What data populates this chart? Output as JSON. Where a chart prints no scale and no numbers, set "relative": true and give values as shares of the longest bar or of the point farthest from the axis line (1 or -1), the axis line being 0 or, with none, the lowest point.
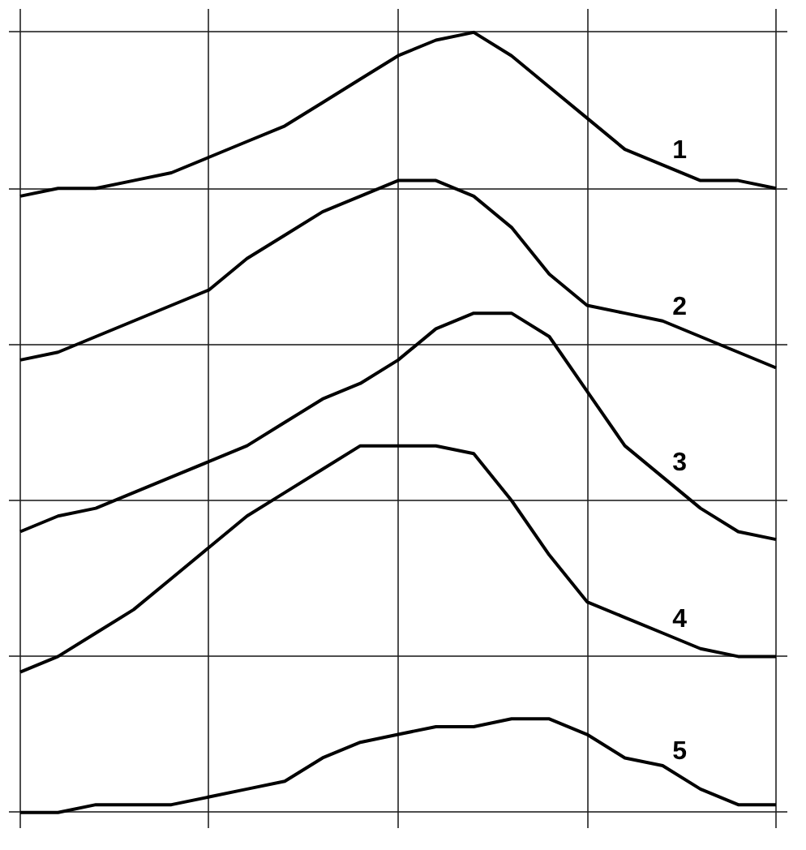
{
  "chart_data": {
    "type": "line",
    "relative": true,
    "grid": true,
    "marker": "none",
    "line_style": "solid",
    "tick_labels": false,
    "categories": [
      null,
      null,
      null,
      null,
      null,
      null,
      null,
      null,
      null,
      null,
      null,
      null,
      null,
      null,
      null,
      null,
      null,
      null,
      null,
      null,
      null
    ],
    "series": [
      {
        "name": "1",
        "color": "#000000",
        "values": [
          0.79,
          0.8,
          0.8,
          0.81,
          0.82,
          0.84,
          0.86,
          0.88,
          0.91,
          0.94,
          0.97,
          0.99,
          1.0,
          0.97,
          0.93,
          0.89,
          0.85,
          0.83,
          0.81,
          0.81,
          0.8
        ]
      },
      {
        "name": "2",
        "color": "#000000",
        "values": [
          0.58,
          0.59,
          0.61,
          0.63,
          0.65,
          0.67,
          0.71,
          0.74,
          0.77,
          0.79,
          0.81,
          0.81,
          0.79,
          0.75,
          0.69,
          0.65,
          0.64,
          0.63,
          0.61,
          0.59,
          0.57
        ]
      },
      {
        "name": "3",
        "color": "#000000",
        "values": [
          0.36,
          0.38,
          0.39,
          0.41,
          0.43,
          0.45,
          0.47,
          0.5,
          0.53,
          0.55,
          0.58,
          0.62,
          0.64,
          0.64,
          0.61,
          0.54,
          0.47,
          0.43,
          0.39,
          0.36,
          0.35
        ]
      },
      {
        "name": "4",
        "color": "#000000",
        "values": [
          0.18,
          0.2,
          0.23,
          0.26,
          0.3,
          0.34,
          0.38,
          0.41,
          0.44,
          0.47,
          0.47,
          0.47,
          0.46,
          0.4,
          0.33,
          0.27,
          0.25,
          0.23,
          0.21,
          0.2,
          0.2
        ]
      },
      {
        "name": "5",
        "color": "#000000",
        "values": [
          0.0,
          0.0,
          0.01,
          0.01,
          0.01,
          0.02,
          0.03,
          0.04,
          0.07,
          0.09,
          0.1,
          0.11,
          0.11,
          0.12,
          0.12,
          0.1,
          0.07,
          0.06,
          0.03,
          0.01,
          0.01
        ]
      }
    ]
  }
}
